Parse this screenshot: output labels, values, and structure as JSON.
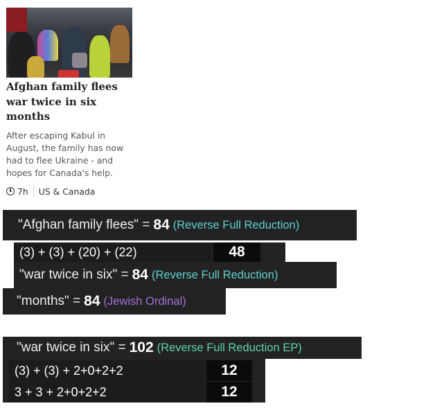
{
  "article": {
    "headline": "Afghan family flees war twice in six months",
    "summary": "After escaping Kabul in August, the family has now had to flee Ukraine - and hopes for Canada's help.",
    "time": "7h",
    "section": "US & Canada",
    "time_icon": "clock-icon"
  },
  "gematria": [
    {
      "phrase": "\"Afghan family flees\" =",
      "value": "84",
      "cipher": "(Reverse Full Reduction)",
      "color": "#5fd3cf"
    },
    {
      "calc": "(3) + (3) + (20) + (22)",
      "result": "48"
    },
    {
      "phrase": "\"war twice in six\" =",
      "value": "84",
      "cipher": "(Reverse Full Reduction)",
      "color": "#5fd3cf"
    },
    {
      "phrase": "\"months\" =",
      "value": "84",
      "cipher": "(Jewish Ordinal)",
      "color": "#a072d9"
    },
    {
      "phrase": "\"war twice in six\" =",
      "value": "102",
      "cipher": "(Reverse Full Reduction EP)",
      "color": "#5fd3b0"
    },
    {
      "calc": "(3) + (3) + 2+0+2+2",
      "result": "12"
    },
    {
      "calc": "3 + 3 + 2+0+2+2",
      "result": "12"
    }
  ]
}
